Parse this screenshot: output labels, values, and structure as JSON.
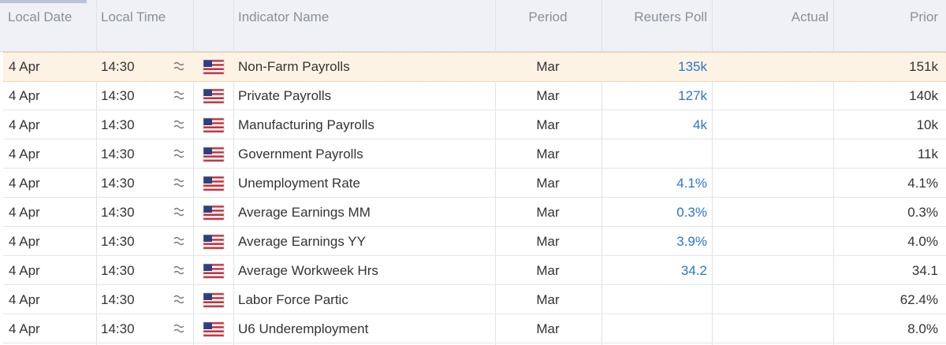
{
  "header": {
    "columns": [
      "Local Date",
      "Local Time",
      "Indicator Name",
      "Period",
      "Reuters Poll",
      "Actual",
      "Prior"
    ]
  },
  "table": {
    "rows": [
      {
        "date": "4 Apr",
        "time": "14:30",
        "indicator": "Non-Farm Payrolls",
        "period": "Mar",
        "poll": "135k",
        "prior": "151k"
      },
      {
        "date": "4 Apr",
        "time": "14:30",
        "indicator": "Private Payrolls",
        "period": "Mar",
        "poll": "127k",
        "prior": "140k"
      },
      {
        "date": "4 Apr",
        "time": "14:30",
        "indicator": "Manufacturing Payrolls",
        "period": "Mar",
        "poll": "4k",
        "prior": "10k"
      },
      {
        "date": "4 Apr",
        "time": "14:30",
        "indicator": "Government Payrolls",
        "period": "Mar",
        "prior": "11k"
      },
      {
        "date": "4 Apr",
        "time": "14:30",
        "indicator": "Unemployment Rate",
        "period": "Mar",
        "poll": "4.1%",
        "prior": "4.1%"
      },
      {
        "date": "4 Apr",
        "time": "14:30",
        "indicator": "Average Earnings MM",
        "period": "Mar",
        "poll": "0.3%",
        "prior": "0.3%"
      },
      {
        "date": "4 Apr",
        "time": "14:30",
        "indicator": "Average Earnings YY",
        "period": "Mar",
        "poll": "3.9%",
        "prior": "4.0%"
      },
      {
        "date": "4 Apr",
        "time": "14:30",
        "indicator": "Average Workweek Hrs",
        "period": "Mar",
        "poll": "34.2",
        "prior": "34.1"
      },
      {
        "date": "4 Apr",
        "time": "14:30",
        "indicator": "Labor Force Partic",
        "period": "Mar",
        "prior": "62.4%"
      },
      {
        "date": "4 Apr",
        "time": "14:30",
        "indicator": "U6 Underemployment",
        "period": "Mar",
        "prior": "8.0%"
      }
    ]
  }
}
